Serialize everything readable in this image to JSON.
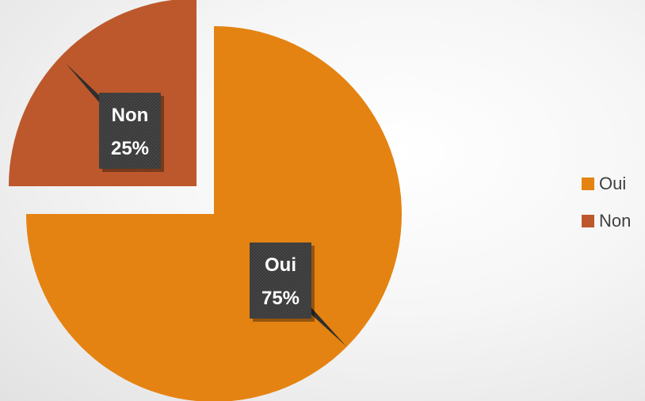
{
  "chart_data": {
    "type": "pie",
    "title": "",
    "categories": [
      "Oui",
      "Non"
    ],
    "values": [
      75,
      25
    ],
    "colors": [
      "#e48312",
      "#bd582c"
    ],
    "exploded": [
      true,
      true
    ],
    "data_labels": [
      {
        "category": "Oui",
        "percent": "75%"
      },
      {
        "category": "Non",
        "percent": "25%"
      }
    ],
    "legend": {
      "position": "right",
      "entries": [
        "Oui",
        "Non"
      ]
    }
  }
}
